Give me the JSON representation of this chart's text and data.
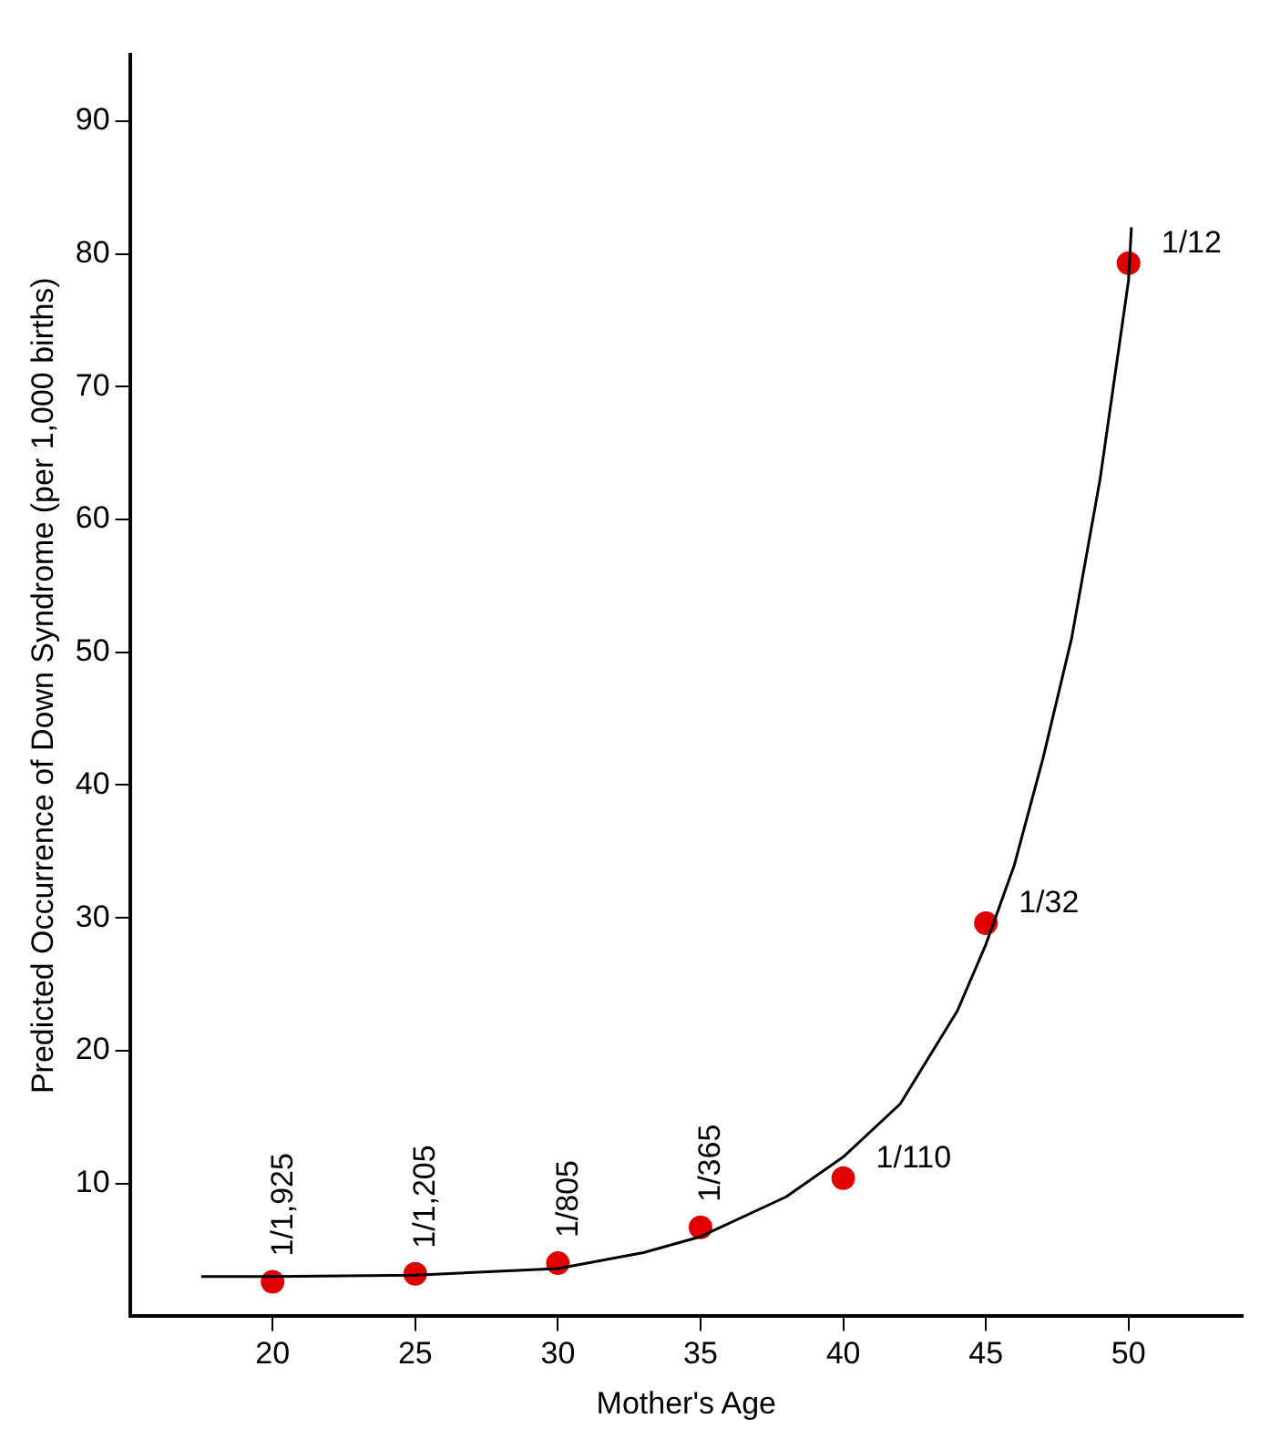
{
  "chart_data": {
    "type": "scatter",
    "xlabel": "Mother's Age",
    "ylabel": "Predicted Occurrence of Down Syndrome (per 1,000 births)",
    "xlim": [
      15,
      54
    ],
    "xticks": [
      20,
      25,
      30,
      35,
      40,
      45,
      50
    ],
    "ylim": [
      0,
      95
    ],
    "yticks": [
      10,
      20,
      30,
      40,
      50,
      60,
      70,
      80,
      90
    ],
    "grid": false,
    "legend": false,
    "series": [
      {
        "type": "line",
        "color": "#000000",
        "marker": "none",
        "x": [
          17.5,
          20,
          25,
          30,
          33,
          35,
          38,
          40,
          42,
          44,
          45,
          46,
          47,
          48,
          49,
          50,
          50.1
        ],
        "values": [
          3,
          3,
          3.1,
          3.6,
          4.8,
          6,
          9,
          12,
          16,
          23,
          28,
          34,
          42,
          51,
          63,
          78,
          82
        ]
      },
      {
        "type": "scatter",
        "color": "#e00000",
        "marker": "circle",
        "x": [
          20,
          25,
          30,
          35,
          40,
          45,
          50
        ],
        "values": [
          2.6,
          3.2,
          4,
          6.7,
          10.4,
          29.6,
          79.3
        ]
      }
    ],
    "annotations": [
      {
        "text": "1/1,925",
        "x": 20,
        "y": 2.6
      },
      {
        "text": "1/1,205",
        "x": 25,
        "y": 3.2
      },
      {
        "text": "1/805",
        "x": 30,
        "y": 4
      },
      {
        "text": "1/365",
        "x": 35,
        "y": 6.7
      },
      {
        "text": "1/110",
        "x": 40,
        "y": 10.4
      },
      {
        "text": "1/32",
        "x": 45,
        "y": 29.6
      },
      {
        "text": "1/12",
        "x": 50,
        "y": 79.3
      }
    ]
  }
}
